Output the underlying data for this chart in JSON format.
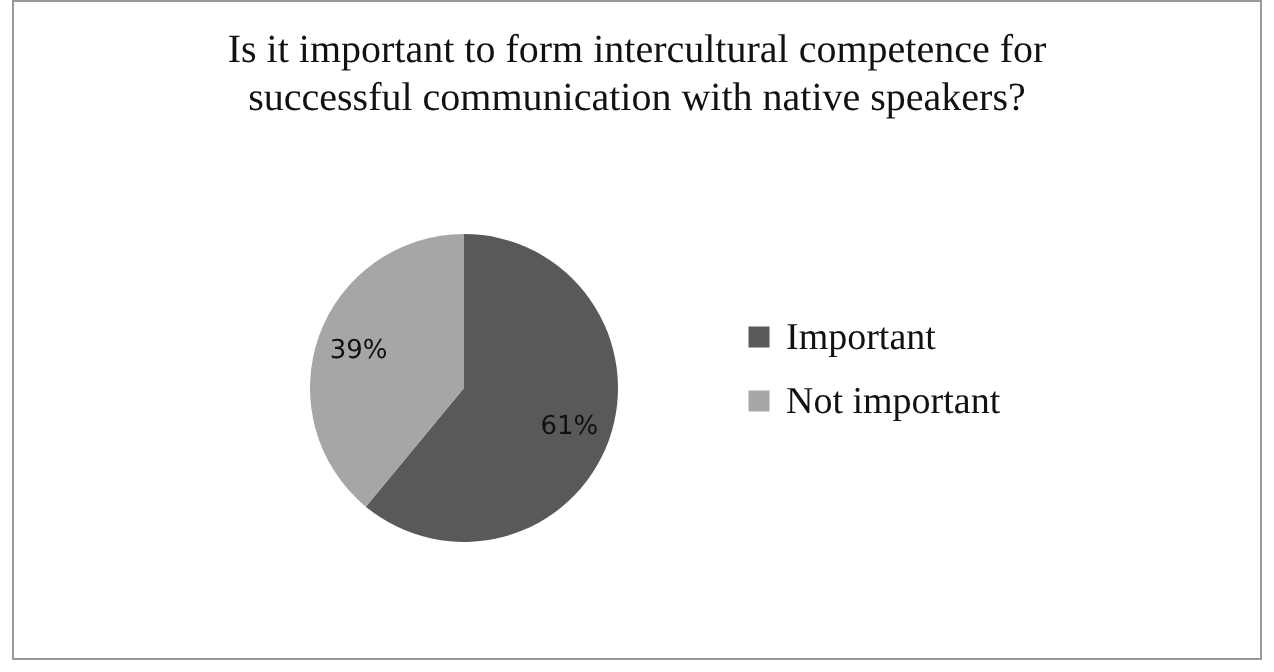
{
  "chart_data": {
    "type": "pie",
    "title": "Is it important to form intercultural competence for successful communication with native speakers?",
    "categories": [
      "Important",
      "Not important"
    ],
    "values": [
      61,
      39
    ],
    "colors": [
      "#595959",
      "#a6a6a6"
    ],
    "value_labels": [
      "61%",
      "39%"
    ],
    "legend": "right"
  }
}
